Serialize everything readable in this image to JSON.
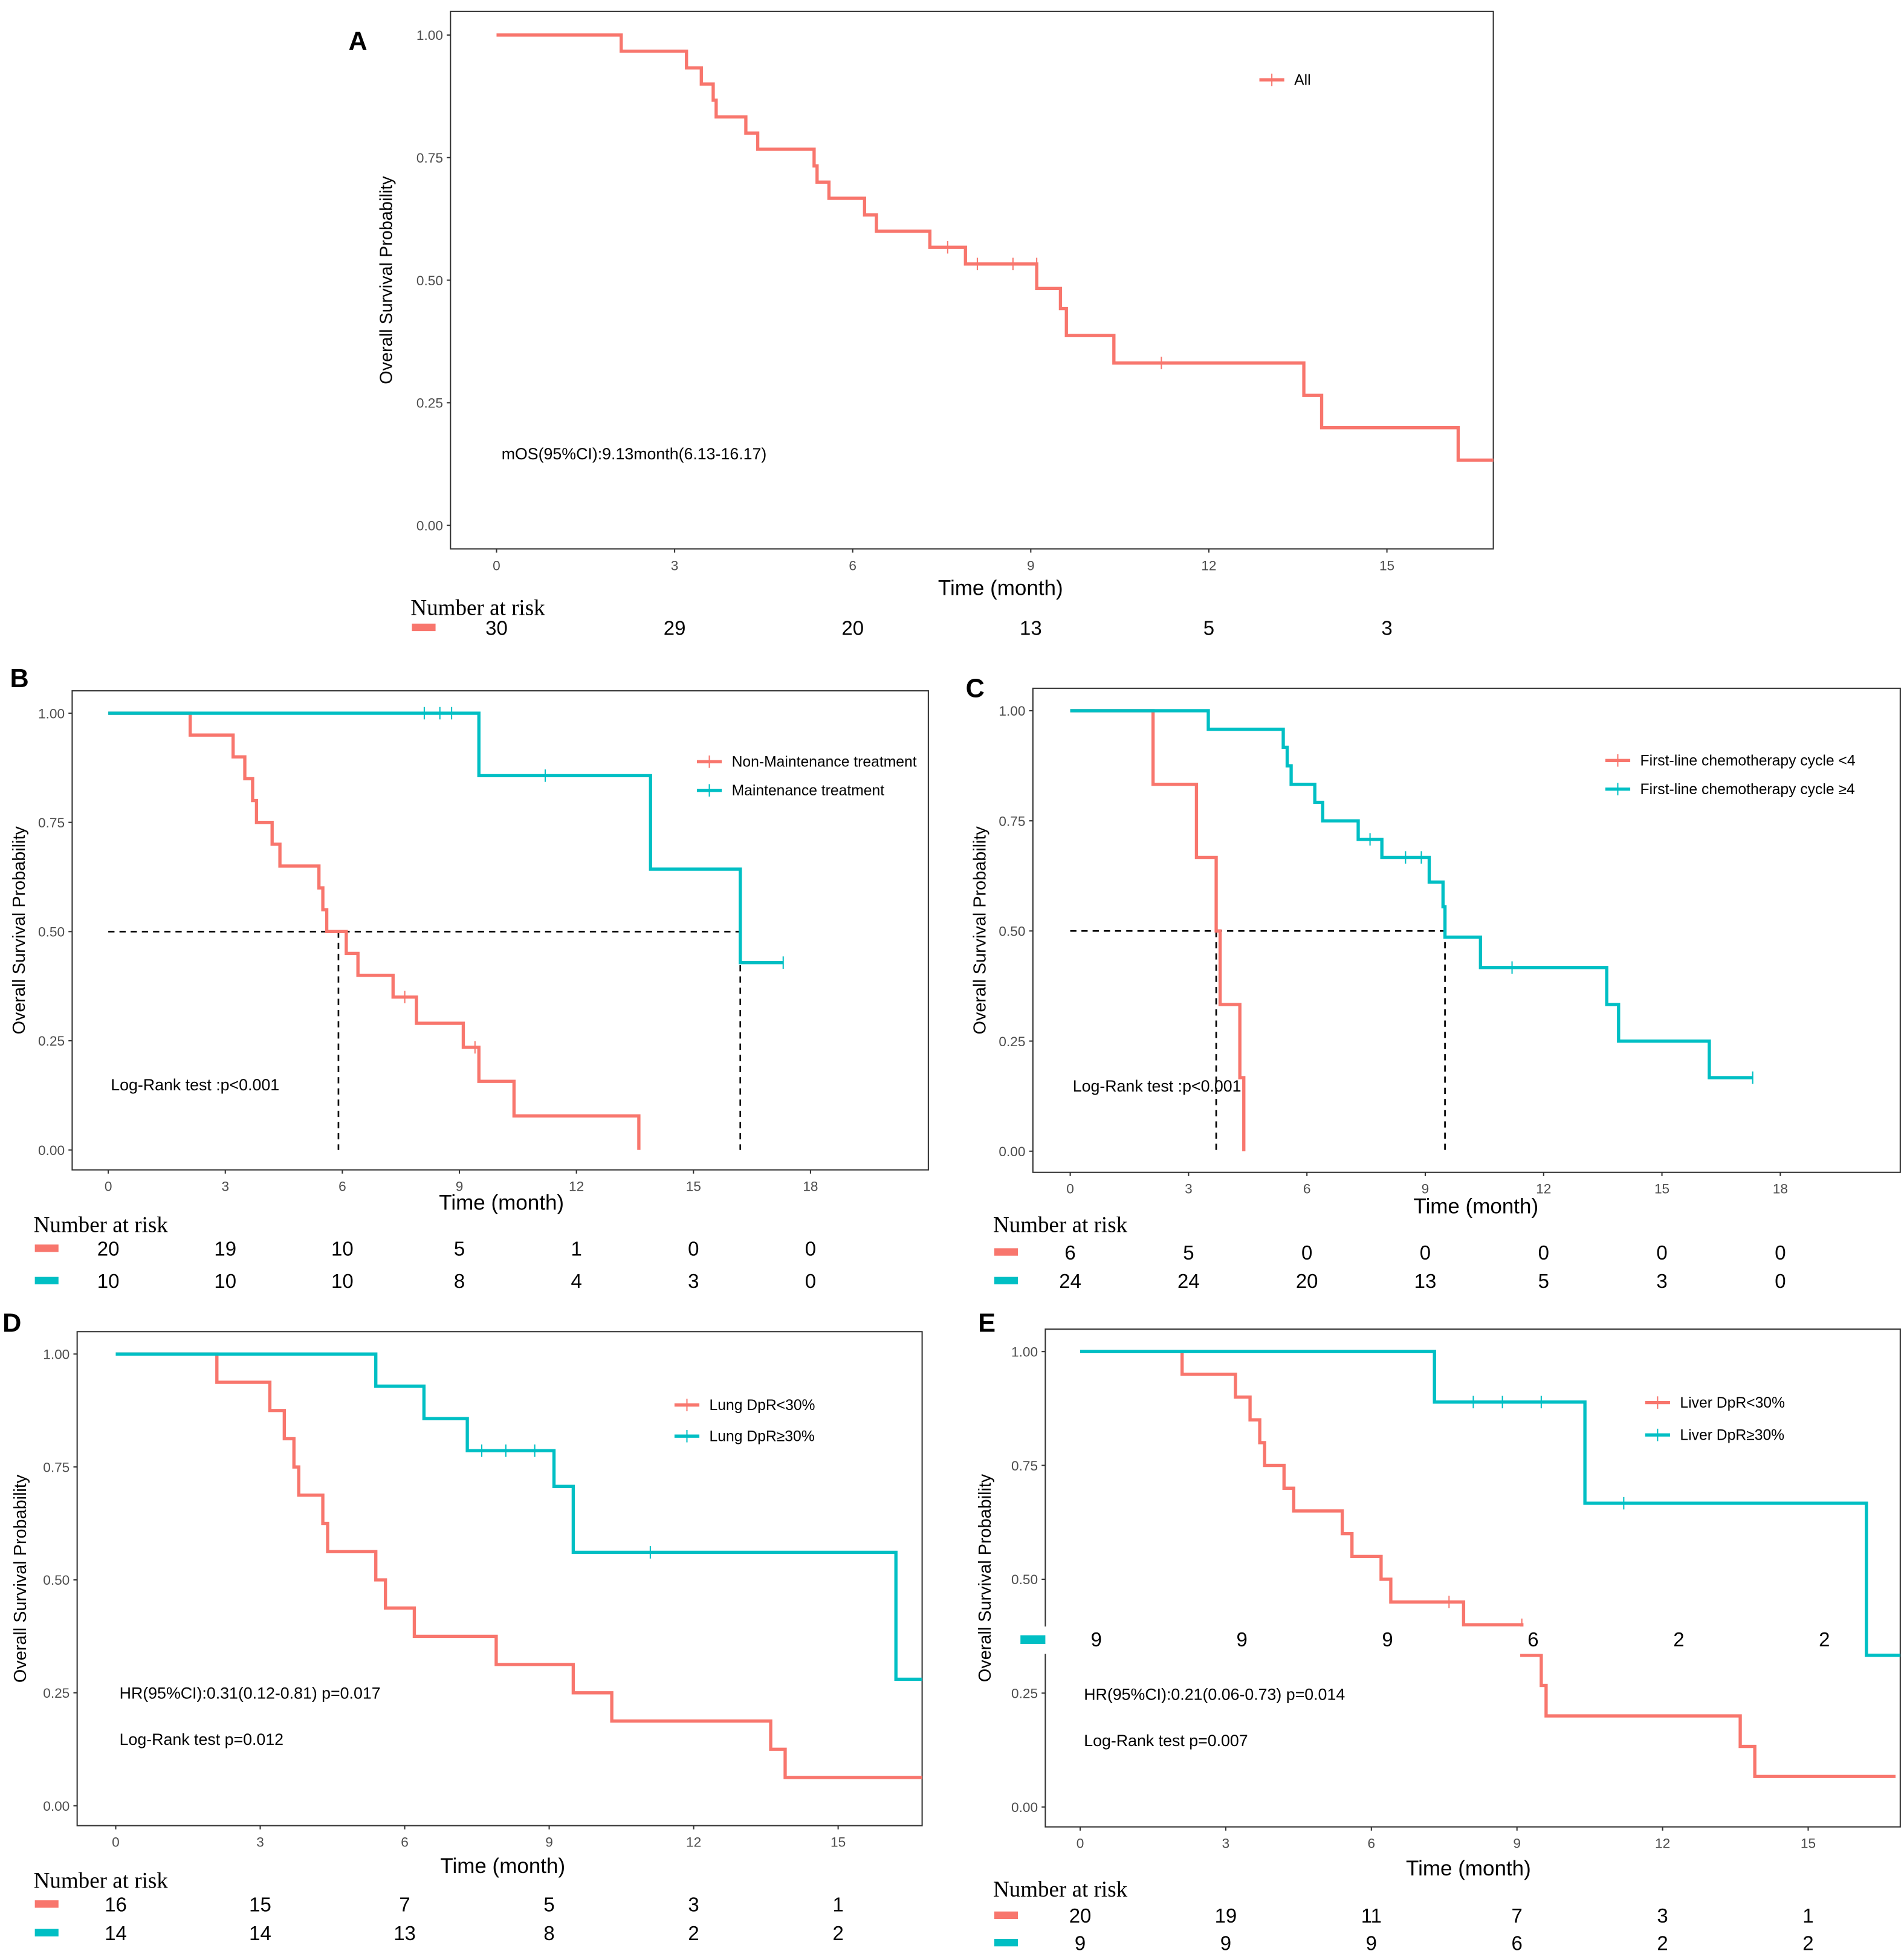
{
  "colors": {
    "red": "#F8766D",
    "teal": "#00BFC4"
  },
  "chart_data": [
    {
      "id": "A",
      "type": "line",
      "panel_label": "A",
      "xlabel": "Time (month)",
      "ylabel": "Overall Survival Probability",
      "xlim": [
        0,
        16.8
      ],
      "ylim": [
        0,
        1
      ],
      "xticks": [
        0,
        3,
        6,
        9,
        12,
        15
      ],
      "yticks": [
        "0.00",
        "0.25",
        "0.50",
        "0.75",
        "1.00"
      ],
      "legend_position": "top-right",
      "annotations": [
        "mOS(95%CI):9.13month(6.13-16.17)"
      ],
      "series": [
        {
          "name": "All",
          "color": "red",
          "end": 16.8,
          "steps": [
            [
              0,
              1
            ],
            [
              2.1,
              0.967
            ],
            [
              3.2,
              0.933
            ],
            [
              3.45,
              0.9
            ],
            [
              3.65,
              0.867
            ],
            [
              3.7,
              0.833
            ],
            [
              4.2,
              0.8
            ],
            [
              4.4,
              0.767
            ],
            [
              5.35,
              0.733
            ],
            [
              5.4,
              0.7
            ],
            [
              5.6,
              0.667
            ],
            [
              6.2,
              0.633
            ],
            [
              6.4,
              0.6
            ],
            [
              7.3,
              0.567
            ],
            [
              7.9,
              0.533
            ],
            [
              9.1,
              0.483
            ],
            [
              9.5,
              0.442
            ],
            [
              9.6,
              0.387
            ],
            [
              10.4,
              0.331
            ],
            [
              13.6,
              0.265
            ],
            [
              13.9,
              0.199
            ],
            [
              16.2,
              0.133
            ]
          ],
          "censor": [
            [
              7.6,
              0.567
            ],
            [
              8.1,
              0.533
            ],
            [
              8.7,
              0.533
            ],
            [
              9.1,
              0.533
            ],
            [
              11.2,
              0.331
            ]
          ]
        }
      ],
      "risk_title": "Number at risk",
      "risk": [
        [
          "30",
          "29",
          "20",
          "13",
          "5",
          "3"
        ]
      ],
      "dashed": []
    },
    {
      "id": "B",
      "type": "line",
      "panel_label": "B",
      "xlabel": "Time (month)",
      "ylabel": "Overall Survival Probability",
      "xlim": [
        0,
        21
      ],
      "ylim": [
        0,
        1
      ],
      "xticks": [
        0,
        3,
        6,
        9,
        12,
        15,
        18
      ],
      "yticks": [
        "0.00",
        "0.25",
        "0.50",
        "0.75",
        "1.00"
      ],
      "legend_position": "top-right",
      "annotations": [
        "Log-Rank test :p<0.001"
      ],
      "series": [
        {
          "name": "Non-Maintenance treatment",
          "color": "red",
          "end": 13.6,
          "steps": [
            [
              0,
              1
            ],
            [
              2.1,
              0.95
            ],
            [
              3.2,
              0.9
            ],
            [
              3.5,
              0.85
            ],
            [
              3.7,
              0.8
            ],
            [
              3.8,
              0.75
            ],
            [
              4.2,
              0.7
            ],
            [
              4.4,
              0.65
            ],
            [
              5.4,
              0.6
            ],
            [
              5.5,
              0.55
            ],
            [
              5.6,
              0.5
            ],
            [
              6.1,
              0.45
            ],
            [
              6.4,
              0.4
            ],
            [
              7.3,
              0.35
            ],
            [
              7.9,
              0.29
            ],
            [
              9.1,
              0.235
            ],
            [
              9.5,
              0.157
            ],
            [
              10.4,
              0.078
            ],
            [
              13.6,
              0
            ]
          ],
          "censor": [
            [
              7.6,
              0.35
            ],
            [
              9.4,
              0.235
            ]
          ]
        },
        {
          "name": "Maintenance treatment",
          "color": "teal",
          "end": 17.3,
          "steps": [
            [
              0,
              1
            ],
            [
              9.5,
              0.857
            ],
            [
              13.9,
              0.643
            ],
            [
              16.2,
              0.429
            ]
          ],
          "censor": [
            [
              8.1,
              1
            ],
            [
              8.5,
              1
            ],
            [
              8.8,
              1
            ],
            [
              11.2,
              0.857
            ],
            [
              17.3,
              0.429
            ]
          ]
        }
      ],
      "risk_title": "Number at risk",
      "risk": [
        [
          "20",
          "19",
          "10",
          "5",
          "1",
          "0",
          "0"
        ],
        [
          "10",
          "10",
          "10",
          "8",
          "4",
          "3",
          "0"
        ]
      ],
      "dashed": [
        5.9,
        16.2
      ]
    },
    {
      "id": "C",
      "type": "line",
      "panel_label": "C",
      "xlabel": "Time (month)",
      "ylabel": "Overall Survival Probability",
      "xlim": [
        0,
        21
      ],
      "ylim": [
        0,
        1
      ],
      "xticks": [
        0,
        3,
        6,
        9,
        12,
        15,
        18
      ],
      "yticks": [
        "0.00",
        "0.25",
        "0.50",
        "0.75",
        "1.00"
      ],
      "legend_position": "top-right",
      "annotations": [
        "Log-Rank test :p<0.001"
      ],
      "series": [
        {
          "name": "First-line chemotherapy cycle <4",
          "color": "red",
          "end": 4.4,
          "steps": [
            [
              0,
              1
            ],
            [
              2.1,
              0.833
            ],
            [
              3.2,
              0.667
            ],
            [
              3.7,
              0.5
            ],
            [
              3.8,
              0.333
            ],
            [
              4.3,
              0.167
            ],
            [
              4.4,
              0
            ]
          ],
          "censor": []
        },
        {
          "name": "First-line chemotherapy cycle ≥4",
          "color": "teal",
          "end": 17.3,
          "steps": [
            [
              0,
              1
            ],
            [
              3.5,
              0.958
            ],
            [
              5.4,
              0.917
            ],
            [
              5.5,
              0.875
            ],
            [
              5.6,
              0.833
            ],
            [
              6.2,
              0.792
            ],
            [
              6.4,
              0.75
            ],
            [
              7.3,
              0.708
            ],
            [
              7.9,
              0.667
            ],
            [
              9.1,
              0.611
            ],
            [
              9.45,
              0.555
            ],
            [
              9.5,
              0.486
            ],
            [
              10.4,
              0.417
            ],
            [
              13.6,
              0.333
            ],
            [
              13.9,
              0.25
            ],
            [
              16.2,
              0.167
            ]
          ],
          "censor": [
            [
              7.6,
              0.708
            ],
            [
              8.5,
              0.667
            ],
            [
              8.9,
              0.667
            ],
            [
              11.2,
              0.417
            ],
            [
              17.3,
              0.167
            ]
          ]
        }
      ],
      "risk_title": "Number at risk",
      "risk": [
        [
          "6",
          "5",
          "0",
          "0",
          "0",
          "0",
          "0"
        ],
        [
          "24",
          "24",
          "20",
          "13",
          "5",
          "3",
          "0"
        ]
      ],
      "dashed": [
        3.7,
        9.5
      ]
    },
    {
      "id": "D",
      "type": "line",
      "panel_label": "D",
      "xlabel": "Time (month)",
      "ylabel": "Overall Survival Probability",
      "xlim": [
        0,
        16.8
      ],
      "ylim": [
        0,
        1
      ],
      "xticks": [
        0,
        3,
        6,
        9,
        12,
        15
      ],
      "yticks": [
        "0.00",
        "0.25",
        "0.50",
        "0.75",
        "1.00"
      ],
      "legend_position": "top-right",
      "annotations": [
        "HR(95%CI):0.31(0.12-0.81) p=0.017",
        "Log-Rank test p=0.012"
      ],
      "series": [
        {
          "name": "Lung DpR<30%",
          "color": "red",
          "end": 16.8,
          "steps": [
            [
              0,
              1
            ],
            [
              2.1,
              0.9375
            ],
            [
              3.2,
              0.875
            ],
            [
              3.5,
              0.8125
            ],
            [
              3.7,
              0.75
            ],
            [
              3.8,
              0.6875
            ],
            [
              4.3,
              0.625
            ],
            [
              4.4,
              0.5625
            ],
            [
              5.4,
              0.5
            ],
            [
              5.6,
              0.4375
            ],
            [
              6.2,
              0.375
            ],
            [
              7.9,
              0.3125
            ],
            [
              9.5,
              0.25
            ],
            [
              10.3,
              0.1875
            ],
            [
              13.6,
              0.125
            ],
            [
              13.9,
              0.0625
            ]
          ],
          "censor": []
        },
        {
          "name": "Lung  DpR≥30%",
          "color": "teal",
          "end": 16.8,
          "steps": [
            [
              0,
              1
            ],
            [
              5.4,
              0.929
            ],
            [
              6.4,
              0.857
            ],
            [
              7.3,
              0.786
            ],
            [
              9.1,
              0.707
            ],
            [
              9.5,
              0.561
            ],
            [
              16.2,
              0.28
            ]
          ],
          "censor": [
            [
              7.6,
              0.786
            ],
            [
              8.1,
              0.786
            ],
            [
              8.7,
              0.786
            ],
            [
              11.1,
              0.561
            ]
          ]
        }
      ],
      "risk_title": "Number at risk",
      "risk": [
        [
          "16",
          "15",
          "7",
          "5",
          "3",
          "1"
        ],
        [
          "14",
          "14",
          "13",
          "8",
          "2",
          "2"
        ]
      ],
      "dashed": []
    },
    {
      "id": "E",
      "type": "line",
      "panel_label": "E",
      "xlabel": "Time (month)",
      "ylabel": "Overall Survival Probability",
      "xlim": [
        0,
        16.8
      ],
      "ylim": [
        0,
        1
      ],
      "xticks": [
        0,
        3,
        6,
        9,
        12,
        15
      ],
      "yticks": [
        "0.00",
        "0.25",
        "0.50",
        "0.75",
        "1.00"
      ],
      "legend_position": "top-right",
      "annotations": [
        "HR(95%CI):0.21(0.06-0.73) p=0.014",
        "Log-Rank test p=0.007"
      ],
      "series": [
        {
          "name": "Liver DpR<30%",
          "color": "red",
          "end": 16.8,
          "steps": [
            [
              0,
              1
            ],
            [
              2.1,
              0.95
            ],
            [
              3.2,
              0.9
            ],
            [
              3.5,
              0.85
            ],
            [
              3.7,
              0.8
            ],
            [
              3.8,
              0.75
            ],
            [
              4.2,
              0.7
            ],
            [
              4.4,
              0.65
            ],
            [
              5.4,
              0.6
            ],
            [
              5.6,
              0.55
            ],
            [
              6.2,
              0.5
            ],
            [
              6.4,
              0.45
            ],
            [
              7.9,
              0.4
            ],
            [
              9.1,
              0.333
            ],
            [
              9.5,
              0.267
            ],
            [
              9.6,
              0.2
            ],
            [
              13.6,
              0.133
            ],
            [
              13.9,
              0.067
            ]
          ],
          "censor": [
            [
              7.6,
              0.45
            ],
            [
              9.1,
              0.4
            ]
          ]
        },
        {
          "name": "Liver  DpR≥30%",
          "color": "teal",
          "end": 16.8,
          "steps": [
            [
              0,
              1
            ],
            [
              7.3,
              0.889
            ],
            [
              10.4,
              0.667
            ],
            [
              16.2,
              0.333
            ]
          ],
          "censor": [
            [
              8.1,
              0.889
            ],
            [
              8.7,
              0.889
            ],
            [
              9.5,
              0.889
            ],
            [
              11.2,
              0.667
            ]
          ]
        }
      ],
      "risk_title": "Number at risk",
      "risk": [
        [
          "20",
          "19",
          "11",
          "7",
          "3",
          "1"
        ],
        [
          "9",
          "9",
          "9",
          "6",
          "2",
          "2"
        ]
      ],
      "overlay_risk": [
        "9",
        "9",
        "9",
        "6",
        "2",
        "2"
      ],
      "dashed": []
    }
  ]
}
